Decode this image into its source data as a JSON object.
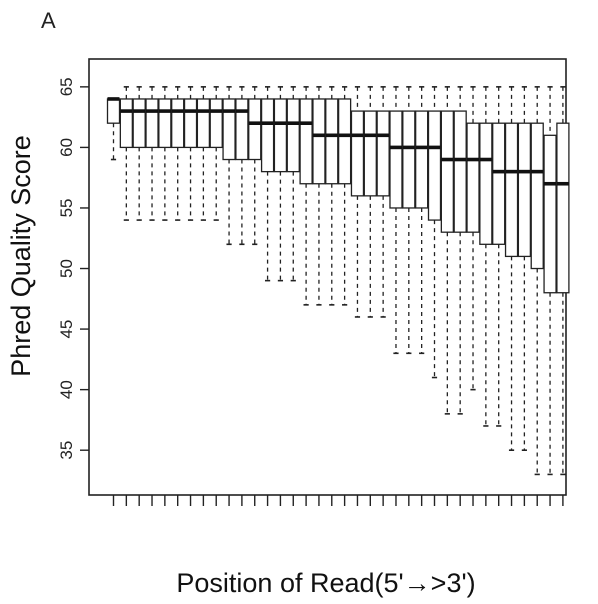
{
  "panel_label": "A",
  "chart_data": {
    "type": "box",
    "title": "",
    "xlabel": "Position of Read(5'→>3')",
    "ylabel": "Phred Quality Score",
    "ylim": [
      31.3,
      67.3
    ],
    "yticks": [
      35,
      40,
      45,
      50,
      55,
      60,
      65
    ],
    "x_tick_labels_shown": false,
    "positions": 36,
    "boxes": [
      {
        "position": 1,
        "whisker_low": 59,
        "q1": 62,
        "median": 64,
        "q3": 64,
        "whisker_high": 64
      },
      {
        "position": 2,
        "whisker_low": 54,
        "q1": 60,
        "median": 63,
        "q3": 64,
        "whisker_high": 65
      },
      {
        "position": 3,
        "whisker_low": 54,
        "q1": 60,
        "median": 63,
        "q3": 64,
        "whisker_high": 65
      },
      {
        "position": 4,
        "whisker_low": 54,
        "q1": 60,
        "median": 63,
        "q3": 64,
        "whisker_high": 65
      },
      {
        "position": 5,
        "whisker_low": 54,
        "q1": 60,
        "median": 63,
        "q3": 64,
        "whisker_high": 65
      },
      {
        "position": 6,
        "whisker_low": 54,
        "q1": 60,
        "median": 63,
        "q3": 64,
        "whisker_high": 65
      },
      {
        "position": 7,
        "whisker_low": 54,
        "q1": 60,
        "median": 63,
        "q3": 64,
        "whisker_high": 65
      },
      {
        "position": 8,
        "whisker_low": 54,
        "q1": 60,
        "median": 63,
        "q3": 64,
        "whisker_high": 65
      },
      {
        "position": 9,
        "whisker_low": 54,
        "q1": 60,
        "median": 63,
        "q3": 64,
        "whisker_high": 65
      },
      {
        "position": 10,
        "whisker_low": 52,
        "q1": 59,
        "median": 63,
        "q3": 64,
        "whisker_high": 65
      },
      {
        "position": 11,
        "whisker_low": 52,
        "q1": 59,
        "median": 63,
        "q3": 64,
        "whisker_high": 65
      },
      {
        "position": 12,
        "whisker_low": 52,
        "q1": 59,
        "median": 62,
        "q3": 64,
        "whisker_high": 65
      },
      {
        "position": 13,
        "whisker_low": 49,
        "q1": 58,
        "median": 62,
        "q3": 64,
        "whisker_high": 65
      },
      {
        "position": 14,
        "whisker_low": 49,
        "q1": 58,
        "median": 62,
        "q3": 64,
        "whisker_high": 65
      },
      {
        "position": 15,
        "whisker_low": 49,
        "q1": 58,
        "median": 62,
        "q3": 64,
        "whisker_high": 65
      },
      {
        "position": 16,
        "whisker_low": 47,
        "q1": 57,
        "median": 62,
        "q3": 64,
        "whisker_high": 65
      },
      {
        "position": 17,
        "whisker_low": 47,
        "q1": 57,
        "median": 61,
        "q3": 64,
        "whisker_high": 65
      },
      {
        "position": 18,
        "whisker_low": 47,
        "q1": 57,
        "median": 61,
        "q3": 64,
        "whisker_high": 65
      },
      {
        "position": 19,
        "whisker_low": 47,
        "q1": 57,
        "median": 61,
        "q3": 64,
        "whisker_high": 65
      },
      {
        "position": 20,
        "whisker_low": 46,
        "q1": 56,
        "median": 61,
        "q3": 63,
        "whisker_high": 65
      },
      {
        "position": 21,
        "whisker_low": 46,
        "q1": 56,
        "median": 61,
        "q3": 63,
        "whisker_high": 65
      },
      {
        "position": 22,
        "whisker_low": 46,
        "q1": 56,
        "median": 61,
        "q3": 63,
        "whisker_high": 65
      },
      {
        "position": 23,
        "whisker_low": 43,
        "q1": 55,
        "median": 60,
        "q3": 63,
        "whisker_high": 65
      },
      {
        "position": 24,
        "whisker_low": 43,
        "q1": 55,
        "median": 60,
        "q3": 63,
        "whisker_high": 65
      },
      {
        "position": 25,
        "whisker_low": 43,
        "q1": 55,
        "median": 60,
        "q3": 63,
        "whisker_high": 65
      },
      {
        "position": 26,
        "whisker_low": 41,
        "q1": 54,
        "median": 60,
        "q3": 63,
        "whisker_high": 65
      },
      {
        "position": 27,
        "whisker_low": 38,
        "q1": 53,
        "median": 59,
        "q3": 63,
        "whisker_high": 65
      },
      {
        "position": 28,
        "whisker_low": 38,
        "q1": 53,
        "median": 59,
        "q3": 63,
        "whisker_high": 65
      },
      {
        "position": 29,
        "whisker_low": 40,
        "q1": 53,
        "median": 59,
        "q3": 62,
        "whisker_high": 65
      },
      {
        "position": 30,
        "whisker_low": 37,
        "q1": 52,
        "median": 59,
        "q3": 62,
        "whisker_high": 65
      },
      {
        "position": 31,
        "whisker_low": 37,
        "q1": 52,
        "median": 58,
        "q3": 62,
        "whisker_high": 65
      },
      {
        "position": 32,
        "whisker_low": 35,
        "q1": 51,
        "median": 58,
        "q3": 62,
        "whisker_high": 65
      },
      {
        "position": 33,
        "whisker_low": 35,
        "q1": 51,
        "median": 58,
        "q3": 62,
        "whisker_high": 65
      },
      {
        "position": 34,
        "whisker_low": 33,
        "q1": 50,
        "median": 58,
        "q3": 62,
        "whisker_high": 65
      },
      {
        "position": 35,
        "whisker_low": 33,
        "q1": 48,
        "median": 57,
        "q3": 61,
        "whisker_high": 65
      },
      {
        "position": 36,
        "whisker_low": 33,
        "q1": 48,
        "median": 57,
        "q3": 62,
        "whisker_high": 65
      }
    ]
  }
}
